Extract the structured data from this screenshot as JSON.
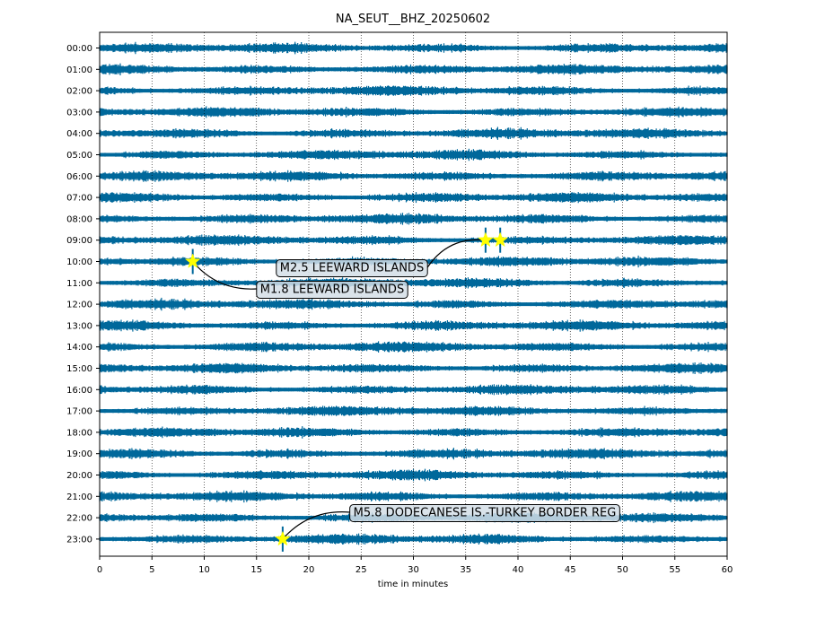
{
  "chart_data": {
    "type": "line",
    "title": "NA_SEUT__BHZ_20250602",
    "xlabel": "time in minutes",
    "ylabel": "",
    "xlim": [
      0,
      60
    ],
    "xticks": [
      0,
      5,
      10,
      15,
      20,
      25,
      30,
      35,
      40,
      45,
      50,
      55,
      60
    ],
    "hour_labels": [
      "00:00",
      "01:00",
      "02:00",
      "03:00",
      "04:00",
      "05:00",
      "06:00",
      "07:00",
      "08:00",
      "09:00",
      "10:00",
      "11:00",
      "12:00",
      "13:00",
      "14:00",
      "15:00",
      "16:00",
      "17:00",
      "18:00",
      "19:00",
      "20:00",
      "21:00",
      "22:00",
      "23:00"
    ],
    "grid": "vertical dotted at each x tick",
    "trace_color": "#00689b",
    "events": [
      {
        "label": "M2.5 LEEWARD ISLANDS",
        "hour": 9,
        "minute": 36.9
      },
      {
        "label": "M1.8 LEEWARD ISLANDS",
        "hour": 10,
        "minute": 8.9
      },
      {
        "label": "M5.8 DODECANESE IS.-TURKEY BORDER REG",
        "hour": 23,
        "minute": 17.5
      },
      {
        "label": "",
        "hour": 9,
        "minute": 38.3
      }
    ],
    "marker_color": "#ffff00"
  }
}
